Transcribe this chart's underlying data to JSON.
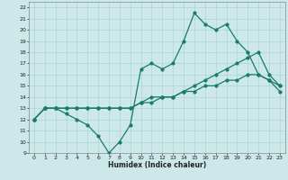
{
  "xlabel": "Humidex (Indice chaleur)",
  "xlim": [
    -0.5,
    23.5
  ],
  "ylim": [
    9,
    22.5
  ],
  "yticks": [
    9,
    10,
    11,
    12,
    13,
    14,
    15,
    16,
    17,
    18,
    19,
    20,
    21,
    22
  ],
  "xticks": [
    0,
    1,
    2,
    3,
    4,
    5,
    6,
    7,
    8,
    9,
    10,
    11,
    12,
    13,
    14,
    15,
    16,
    17,
    18,
    19,
    20,
    21,
    22,
    23
  ],
  "bg_color": "#cce8e8",
  "grid_color": "#aad4d4",
  "line_color": "#1a7a6e",
  "line1_y": [
    12,
    13,
    13,
    12.5,
    12,
    11.5,
    10.5,
    9,
    10,
    11.5,
    16.5,
    17,
    16.5,
    17,
    19,
    21.5,
    20.5,
    20,
    20.5,
    19,
    18,
    16,
    15.5,
    14.5
  ],
  "line2_y": [
    12,
    13,
    13,
    13,
    13,
    13,
    13,
    13,
    13,
    13,
    13.5,
    14,
    14,
    14,
    14.5,
    15,
    15.5,
    16,
    16.5,
    17,
    17.5,
    18,
    16,
    15
  ],
  "line3_y": [
    12,
    13,
    13,
    13,
    13,
    13,
    13,
    13,
    13,
    13,
    13.5,
    13.5,
    14,
    14,
    14.5,
    14.5,
    15,
    15,
    15.5,
    15.5,
    16,
    16,
    15.5,
    15
  ]
}
